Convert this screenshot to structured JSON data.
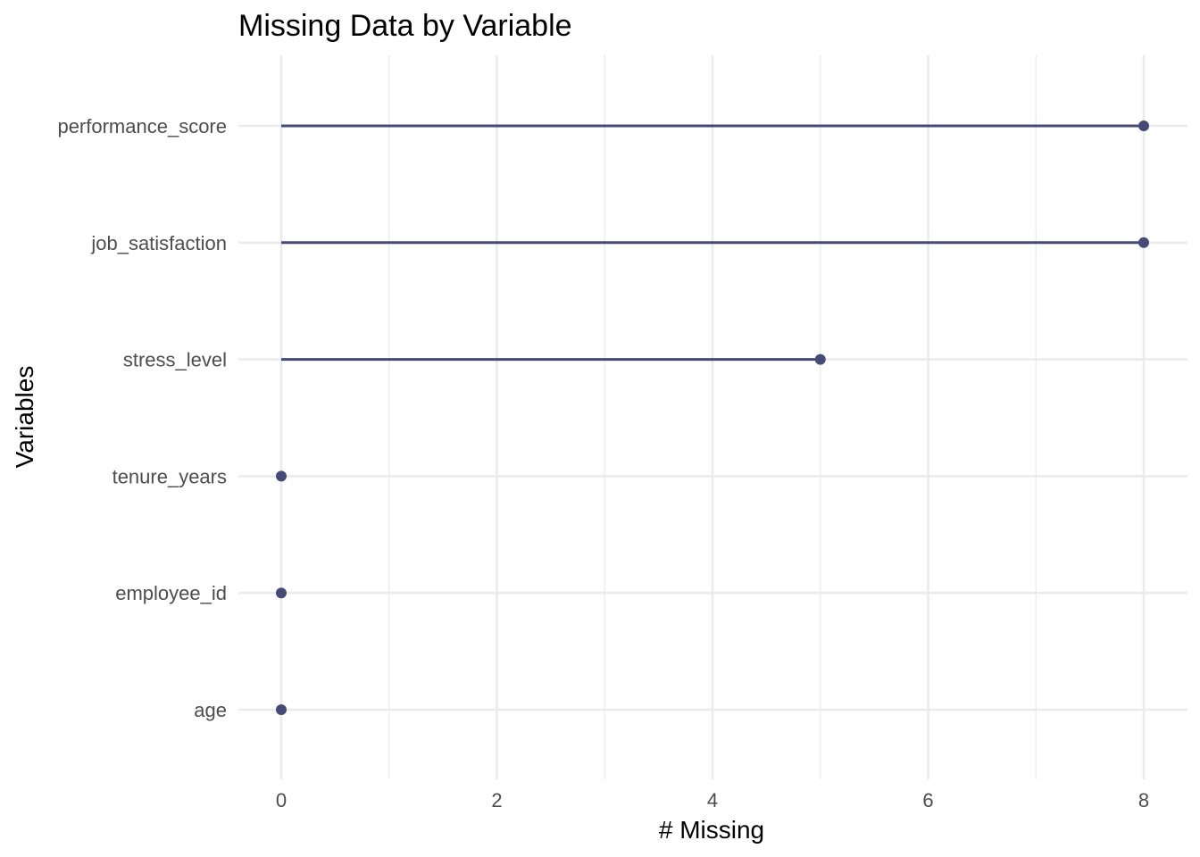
{
  "chart_data": {
    "type": "lollipop",
    "title": "Missing Data by Variable",
    "xlabel": "# Missing",
    "ylabel": "Variables",
    "xlim": [
      0,
      8
    ],
    "xticks": [
      0,
      2,
      4,
      6,
      8
    ],
    "grid": true,
    "color": "#474a76",
    "categories": [
      "performance_score",
      "job_satisfaction",
      "stress_level",
      "tenure_years",
      "employee_id",
      "age"
    ],
    "values": [
      8,
      8,
      5,
      0,
      0,
      0
    ]
  }
}
